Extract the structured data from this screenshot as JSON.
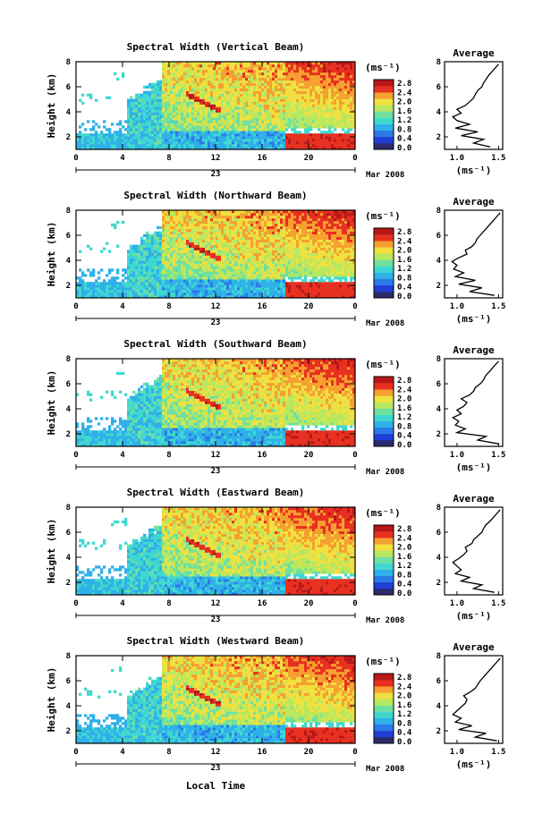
{
  "colors": {
    "colormap": [
      "#2b2b6e",
      "#1f3fd6",
      "#2a7ae8",
      "#2fb0e8",
      "#3fd8d0",
      "#6fe0a0",
      "#b8e860",
      "#f0e040",
      "#f5a030",
      "#e83020",
      "#b81818"
    ]
  },
  "chart_data": [
    {
      "type": "heatmap",
      "title": "Spectral Width (Vertical Beam)",
      "ylabel": "Height (km)",
      "x_ticks": [
        "0",
        "4",
        "8",
        "12",
        "16",
        "20",
        "0"
      ],
      "yticks": [
        "2",
        "4",
        "6",
        "8"
      ],
      "date_day": "23",
      "date_month": "Mar 2008",
      "xlim": [
        0,
        24
      ],
      "ylim": [
        1,
        8
      ],
      "colorbar_unit": "(ms⁻¹)",
      "colorbar_ticks": [
        "2.8",
        "2.4",
        "2.0",
        "1.6",
        "1.2",
        "0.8",
        "0.4",
        "0.0"
      ],
      "colorbar_range": [
        0.0,
        2.8
      ],
      "average_panel": {
        "title": "Average",
        "xlabel": "(ms⁻¹)",
        "x_ticks": [
          "1.0",
          "1.5"
        ],
        "y_ticks": [
          "2",
          "4",
          "6",
          "8"
        ],
        "xlim": [
          0.85,
          1.55
        ],
        "ylim": [
          1,
          8
        ],
        "height": [
          1.2,
          1.5,
          1.8,
          2.1,
          2.4,
          2.7,
          3.0,
          3.3,
          3.6,
          3.9,
          4.2,
          4.5,
          4.8,
          5.1,
          5.4,
          5.7,
          6.0,
          6.3,
          6.6,
          6.9,
          7.2,
          7.5,
          7.8
        ],
        "width": [
          1.4,
          1.2,
          1.32,
          1.05,
          1.25,
          0.98,
          1.15,
          1.0,
          0.95,
          1.05,
          1.0,
          1.1,
          1.15,
          1.2,
          1.22,
          1.25,
          1.3,
          1.32,
          1.35,
          1.38,
          1.42,
          1.46,
          1.5
        ]
      }
    },
    {
      "type": "heatmap",
      "title": "Spectral Width (Northward Beam)",
      "ylabel": "Height (km)",
      "x_ticks": [
        "0",
        "4",
        "8",
        "12",
        "16",
        "20",
        "0"
      ],
      "yticks": [
        "2",
        "4",
        "6",
        "8"
      ],
      "date_day": "23",
      "date_month": "Mar 2008",
      "xlim": [
        0,
        24
      ],
      "ylim": [
        1,
        8
      ],
      "colorbar_unit": "(ms⁻¹)",
      "colorbar_ticks": [
        "2.8",
        "2.4",
        "2.0",
        "1.6",
        "1.2",
        "0.8",
        "0.4",
        "0.0"
      ],
      "colorbar_range": [
        0.0,
        2.8
      ],
      "average_panel": {
        "title": "Average",
        "xlabel": "(ms⁻¹)",
        "x_ticks": [
          "1.0",
          "1.5"
        ],
        "y_ticks": [
          "2",
          "4",
          "6",
          "8"
        ],
        "xlim": [
          0.85,
          1.55
        ],
        "ylim": [
          1,
          8
        ],
        "height": [
          1.2,
          1.5,
          1.8,
          2.1,
          2.4,
          2.7,
          3.0,
          3.3,
          3.6,
          3.9,
          4.2,
          4.5,
          4.8,
          5.1,
          5.4,
          5.7,
          6.0,
          6.3,
          6.6,
          6.9,
          7.2,
          7.5,
          7.8
        ],
        "width": [
          1.45,
          1.15,
          1.3,
          1.02,
          1.22,
          0.98,
          1.08,
          0.96,
          1.0,
          0.94,
          1.02,
          1.12,
          1.1,
          1.18,
          1.22,
          1.24,
          1.28,
          1.32,
          1.36,
          1.4,
          1.44,
          1.48,
          1.52
        ]
      }
    },
    {
      "type": "heatmap",
      "title": "Spectral Width (Southward Beam)",
      "ylabel": "Height (km)",
      "x_ticks": [
        "0",
        "4",
        "8",
        "12",
        "16",
        "20",
        "0"
      ],
      "yticks": [
        "2",
        "4",
        "6",
        "8"
      ],
      "date_day": "23",
      "date_month": "Mar 2008",
      "xlim": [
        0,
        24
      ],
      "ylim": [
        1,
        8
      ],
      "colorbar_unit": "(ms⁻¹)",
      "colorbar_ticks": [
        "2.8",
        "2.4",
        "2.0",
        "1.6",
        "1.2",
        "0.8",
        "0.4",
        "0.0"
      ],
      "colorbar_range": [
        0.0,
        2.8
      ],
      "average_panel": {
        "title": "Average",
        "xlabel": "(ms⁻¹)",
        "x_ticks": [
          "1.0",
          "1.5"
        ],
        "y_ticks": [
          "2",
          "4",
          "6",
          "8"
        ],
        "xlim": [
          0.85,
          1.55
        ],
        "ylim": [
          1,
          8
        ],
        "height": [
          1.2,
          1.5,
          1.8,
          2.1,
          2.4,
          2.7,
          3.0,
          3.3,
          3.6,
          3.9,
          4.2,
          4.5,
          4.8,
          5.1,
          5.4,
          5.7,
          6.0,
          6.3,
          6.6,
          6.9,
          7.2,
          7.5,
          7.8
        ],
        "width": [
          1.5,
          1.25,
          1.35,
          1.0,
          1.1,
          0.98,
          1.02,
          0.95,
          1.05,
          1.0,
          1.08,
          1.12,
          1.05,
          1.15,
          1.2,
          1.22,
          1.28,
          1.32,
          1.34,
          1.38,
          1.42,
          1.46,
          1.5
        ]
      }
    },
    {
      "type": "heatmap",
      "title": "Spectral Width (Eastward Beam)",
      "ylabel": "Height (km)",
      "x_ticks": [
        "0",
        "4",
        "8",
        "12",
        "16",
        "20",
        "0"
      ],
      "yticks": [
        "2",
        "4",
        "6",
        "8"
      ],
      "date_day": "23",
      "date_month": "Mar 2008",
      "xlim": [
        0,
        24
      ],
      "ylim": [
        1,
        8
      ],
      "colorbar_unit": "(ms⁻¹)",
      "colorbar_ticks": [
        "2.8",
        "2.4",
        "2.0",
        "1.6",
        "1.2",
        "0.8",
        "0.4",
        "0.0"
      ],
      "colorbar_range": [
        0.0,
        2.8
      ],
      "average_panel": {
        "title": "Average",
        "xlabel": "(ms⁻¹)",
        "x_ticks": [
          "1.0",
          "1.5"
        ],
        "y_ticks": [
          "2",
          "4",
          "6",
          "8"
        ],
        "xlim": [
          0.85,
          1.55
        ],
        "ylim": [
          1,
          8
        ],
        "height": [
          1.2,
          1.5,
          1.8,
          2.1,
          2.4,
          2.7,
          3.0,
          3.3,
          3.6,
          3.9,
          4.2,
          4.5,
          4.8,
          5.1,
          5.4,
          5.7,
          6.0,
          6.3,
          6.6,
          6.9,
          7.2,
          7.5,
          7.8
        ],
        "width": [
          1.45,
          1.2,
          1.3,
          1.05,
          1.15,
          0.98,
          1.05,
          1.0,
          0.95,
          1.02,
          1.08,
          1.12,
          1.1,
          1.18,
          1.2,
          1.25,
          1.3,
          1.32,
          1.35,
          1.4,
          1.44,
          1.48,
          1.52
        ]
      }
    },
    {
      "type": "heatmap",
      "title": "Spectral Width (Westward Beam)",
      "ylabel": "Height (km)",
      "xlabel": "Local Time",
      "x_ticks": [
        "0",
        "4",
        "8",
        "12",
        "16",
        "20",
        "0"
      ],
      "yticks": [
        "2",
        "4",
        "6",
        "8"
      ],
      "date_day": "23",
      "date_month": "Mar 2008",
      "xlim": [
        0,
        24
      ],
      "ylim": [
        1,
        8
      ],
      "colorbar_unit": "(ms⁻¹)",
      "colorbar_ticks": [
        "2.8",
        "2.4",
        "2.0",
        "1.6",
        "1.2",
        "0.8",
        "0.4",
        "0.0"
      ],
      "colorbar_range": [
        0.0,
        2.8
      ],
      "average_panel": {
        "title": "Average",
        "xlabel": "(ms⁻¹)",
        "x_ticks": [
          "1.0",
          "1.5"
        ],
        "y_ticks": [
          "2",
          "4",
          "6",
          "8"
        ],
        "xlim": [
          0.85,
          1.55
        ],
        "ylim": [
          1,
          8
        ],
        "height": [
          1.2,
          1.5,
          1.8,
          2.1,
          2.4,
          2.7,
          3.0,
          3.3,
          3.6,
          3.9,
          4.2,
          4.5,
          4.8,
          5.1,
          5.4,
          5.7,
          6.0,
          6.3,
          6.6,
          6.9,
          7.2,
          7.5,
          7.8
        ],
        "width": [
          1.48,
          1.22,
          1.35,
          1.02,
          1.18,
          0.98,
          1.05,
          0.95,
          1.0,
          1.05,
          1.1,
          1.12,
          1.08,
          1.16,
          1.22,
          1.25,
          1.28,
          1.32,
          1.36,
          1.4,
          1.44,
          1.48,
          1.52
        ]
      }
    }
  ]
}
